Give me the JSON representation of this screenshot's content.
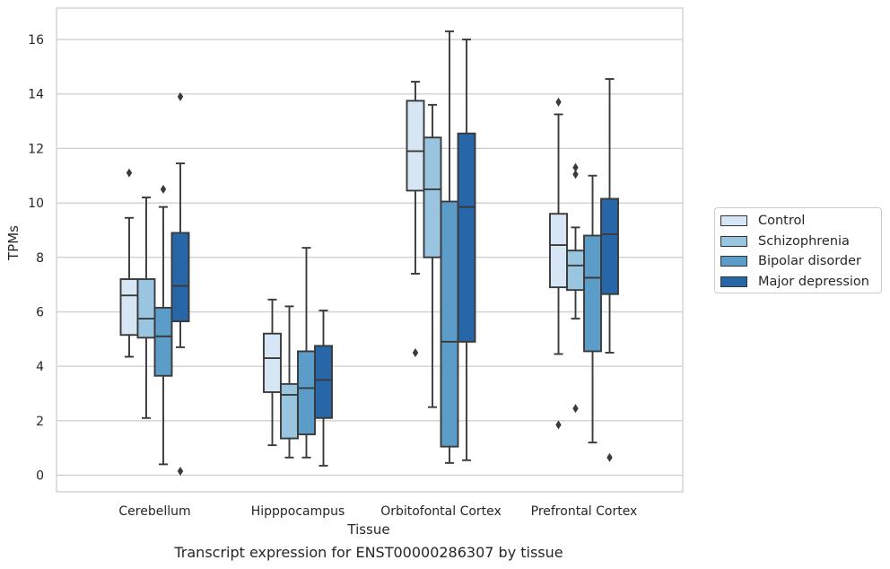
{
  "caption": "Transcript expression for ENST00000286307 by tissue",
  "chart_data": {
    "type": "boxplot",
    "xlabel": "Tissue",
    "ylabel": "TPMs",
    "ylim": [
      -0.6,
      17.1
    ],
    "yticks": [
      0,
      2,
      4,
      6,
      8,
      10,
      12,
      14,
      16
    ],
    "grid": "horizontal",
    "legend_position": "right",
    "categories": [
      "Cerebellum",
      "Hipppocampus",
      "Orbitofontal Cortex",
      "Prefrontal Cortex"
    ],
    "series": [
      {
        "name": "Control",
        "color": "#d6e6f4",
        "boxes": [
          {
            "whislo": 4.35,
            "q1": 5.15,
            "med": 6.6,
            "q3": 7.2,
            "whishi": 9.45,
            "fliers": [
              11.1
            ]
          },
          {
            "whislo": 1.1,
            "q1": 3.05,
            "med": 4.3,
            "q3": 5.2,
            "whishi": 6.45,
            "fliers": []
          },
          {
            "whislo": 7.4,
            "q1": 10.45,
            "med": 11.9,
            "q3": 13.75,
            "whishi": 14.45,
            "fliers": [
              4.5
            ]
          },
          {
            "whislo": 4.45,
            "q1": 6.9,
            "med": 8.45,
            "q3": 9.6,
            "whishi": 13.25,
            "fliers": [
              13.7,
              1.85
            ]
          }
        ]
      },
      {
        "name": "Schizophrenia",
        "color": "#9ac5e0",
        "boxes": [
          {
            "whislo": 2.1,
            "q1": 5.05,
            "med": 5.75,
            "q3": 7.2,
            "whishi": 10.2,
            "fliers": []
          },
          {
            "whislo": 0.65,
            "q1": 1.35,
            "med": 2.95,
            "q3": 3.35,
            "whishi": 6.2,
            "fliers": []
          },
          {
            "whislo": 2.5,
            "q1": 8.0,
            "med": 10.5,
            "q3": 12.4,
            "whishi": 13.6,
            "fliers": []
          },
          {
            "whislo": 5.75,
            "q1": 6.8,
            "med": 7.7,
            "q3": 8.25,
            "whishi": 9.1,
            "fliers": [
              11.3,
              11.05,
              2.45
            ]
          }
        ]
      },
      {
        "name": "Bipolar disorder",
        "color": "#5b9cc9",
        "boxes": [
          {
            "whislo": 0.4,
            "q1": 3.65,
            "med": 5.1,
            "q3": 6.15,
            "whishi": 9.85,
            "fliers": [
              10.5
            ]
          },
          {
            "whislo": 0.65,
            "q1": 1.5,
            "med": 3.2,
            "q3": 4.55,
            "whishi": 8.35,
            "fliers": []
          },
          {
            "whislo": 0.45,
            "q1": 1.05,
            "med": 4.9,
            "q3": 10.05,
            "whishi": 16.3,
            "fliers": []
          },
          {
            "whislo": 1.2,
            "q1": 4.55,
            "med": 7.25,
            "q3": 8.8,
            "whishi": 11.0,
            "fliers": []
          }
        ]
      },
      {
        "name": "Major depression",
        "color": "#2767a8",
        "boxes": [
          {
            "whislo": 4.7,
            "q1": 5.65,
            "med": 6.95,
            "q3": 8.9,
            "whishi": 11.45,
            "fliers": [
              13.9,
              0.15
            ]
          },
          {
            "whislo": 0.35,
            "q1": 2.1,
            "med": 3.5,
            "q3": 4.75,
            "whishi": 6.05,
            "fliers": []
          },
          {
            "whislo": 0.55,
            "q1": 4.9,
            "med": 9.85,
            "q3": 12.55,
            "whishi": 16.0,
            "fliers": []
          },
          {
            "whislo": 4.5,
            "q1": 6.65,
            "med": 8.85,
            "q3": 10.15,
            "whishi": 14.55,
            "fliers": [
              0.65
            ]
          }
        ]
      }
    ]
  }
}
